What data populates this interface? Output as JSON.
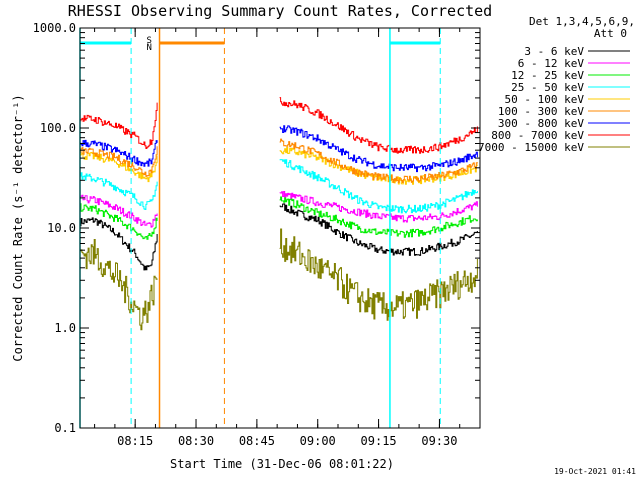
{
  "chart_data": {
    "type": "line",
    "title": "RHESSI Observing Summary Count Rates, Corrected",
    "xlabel": "Start Time (31-Dec-06 08:01:22)",
    "ylabel": "Corrected Count Rate (s⁻¹ detector⁻¹)",
    "y_scale": "log",
    "ylim": [
      0.1,
      1000
    ],
    "y_ticks": [
      0.1,
      1,
      10,
      100,
      1000
    ],
    "y_tick_labels": [
      "0.1",
      "1.0",
      "10.0",
      "100.0",
      "1000.0"
    ],
    "xlim_min": [
      481.4,
      580
    ],
    "x_ticks_min": [
      495,
      510,
      525,
      540,
      555,
      570
    ],
    "x_tick_labels": [
      "08:15",
      "08:30",
      "08:45",
      "09:00",
      "09:15",
      "09:30"
    ],
    "legend_header": [
      "Det 1,3,4,5,6,9,",
      "Att 0"
    ],
    "legend_position": "right",
    "series": [
      {
        "name": "3 - 6 keV",
        "color": "#000000",
        "seg1": {
          "x": [
            481.4,
            485,
            490,
            495,
            497.5,
            499,
            500.5
          ],
          "y": [
            11.5,
            12,
            9,
            5.5,
            3.8,
            4.3,
            9
          ]
        },
        "seg2": {
          "x": [
            530.6,
            535,
            540,
            545,
            550,
            555,
            560,
            565,
            570,
            575,
            579.5
          ],
          "y": [
            17,
            14,
            12,
            9,
            7,
            6,
            5.8,
            5.8,
            6.5,
            7.5,
            9
          ]
        }
      },
      {
        "name": "6 - 12 keV",
        "color": "#ff00ff",
        "seg1": {
          "x": [
            481.4,
            485,
            490,
            495,
            497.5,
            499,
            500.5
          ],
          "y": [
            19.5,
            19,
            16,
            12.5,
            10.5,
            11,
            15
          ]
        },
        "seg2": {
          "x": [
            530.6,
            535,
            540,
            545,
            550,
            555,
            560,
            565,
            570,
            575,
            579.5
          ],
          "y": [
            22,
            20,
            18,
            16,
            14.5,
            13,
            12.5,
            12.5,
            13,
            15,
            17
          ]
        }
      },
      {
        "name": "12 - 25 keV",
        "color": "#00ee00",
        "seg1": {
          "x": [
            481.4,
            485,
            490,
            495,
            497.5,
            499,
            500.5
          ],
          "y": [
            16,
            15.5,
            12.5,
            9.5,
            7.5,
            8.5,
            13
          ]
        },
        "seg2": {
          "x": [
            530.6,
            535,
            540,
            545,
            550,
            555,
            560,
            565,
            570,
            575,
            579.5
          ],
          "y": [
            20,
            17,
            14,
            12,
            10,
            9,
            8.8,
            9,
            10,
            11.5,
            13
          ]
        }
      },
      {
        "name": "25 - 50 keV",
        "color": "#00ffff",
        "seg1": {
          "x": [
            481.4,
            485,
            490,
            495,
            497.5,
            499,
            500.5
          ],
          "y": [
            33,
            31,
            26,
            20,
            16.5,
            18,
            30
          ]
        },
        "seg2": {
          "x": [
            530.6,
            535,
            540,
            545,
            550,
            555,
            560,
            565,
            570,
            575,
            579.5
          ],
          "y": [
            48,
            40,
            32,
            25,
            19,
            16,
            15.5,
            15.5,
            17,
            20,
            25
          ]
        }
      },
      {
        "name": "50 - 100 keV",
        "color": "#ffcc00",
        "seg1": {
          "x": [
            481.4,
            485,
            490,
            495,
            497.5,
            499,
            500.5
          ],
          "y": [
            53,
            52,
            46,
            36,
            31,
            33,
            50
          ]
        },
        "seg2": {
          "x": [
            530.6,
            535,
            540,
            545,
            550,
            555,
            560,
            565,
            570,
            575,
            579.5
          ],
          "y": [
            60,
            57,
            50,
            42,
            35,
            31,
            30,
            30,
            32,
            35,
            40
          ]
        }
      },
      {
        "name": "100 - 300 keV",
        "color": "#ff8800",
        "seg1": {
          "x": [
            481.4,
            485,
            490,
            495,
            497.5,
            499,
            500.5
          ],
          "y": [
            59,
            57,
            51,
            41,
            35,
            38,
            65
          ]
        },
        "seg2": {
          "x": [
            530.6,
            535,
            540,
            545,
            550,
            555,
            560,
            565,
            570,
            575,
            579.5
          ],
          "y": [
            72,
            66,
            55,
            44,
            36,
            32,
            31,
            31,
            33,
            37,
            43
          ]
        }
      },
      {
        "name": "300 - 800 keV",
        "color": "#0000ff",
        "seg1": {
          "x": [
            481.4,
            485,
            490,
            495,
            497.5,
            499,
            500.5
          ],
          "y": [
            71,
            69,
            60,
            48,
            43,
            46,
            80
          ]
        },
        "seg2": {
          "x": [
            530.6,
            535,
            540,
            545,
            550,
            555,
            560,
            565,
            570,
            575,
            579.5
          ],
          "y": [
            100,
            92,
            78,
            60,
            48,
            42,
            40,
            40,
            42,
            47,
            56
          ]
        }
      },
      {
        "name": "800 - 7000 keV",
        "color": "#ff0000",
        "seg1": {
          "x": [
            481.4,
            485,
            490,
            495,
            497.5,
            499,
            500.5
          ],
          "y": [
            125,
            122,
            105,
            82,
            66,
            75,
            180
          ]
        },
        "seg2": {
          "x": [
            530.6,
            535,
            540,
            545,
            550,
            555,
            560,
            565,
            570,
            575,
            579.5
          ],
          "y": [
            185,
            170,
            140,
            105,
            78,
            64,
            60,
            60,
            65,
            78,
            98
          ]
        }
      },
      {
        "name": "7000 - 15000 keV",
        "color": "#808000",
        "seg1": {
          "x": [
            481.4,
            485,
            488,
            491,
            493,
            495,
            496.5,
            498,
            499.5,
            500.5
          ],
          "y": [
            5.5,
            5.5,
            4,
            3,
            2.2,
            1.6,
            1.3,
            1.6,
            2.4,
            3.5
          ]
        },
        "seg2": {
          "x": [
            530.6,
            535,
            540,
            545,
            548,
            552,
            556,
            560,
            565,
            570,
            575,
            579.5
          ],
          "y": [
            7,
            5.5,
            4,
            3,
            2.3,
            1.8,
            1.6,
            1.6,
            1.8,
            2.2,
            2.8,
            3.5
          ]
        }
      }
    ],
    "markers": {
      "saa_label": "S",
      "night_label": "N",
      "vertical_lines": [
        {
          "x": 481.4,
          "color": "#00ffff",
          "style": "solid"
        },
        {
          "x": 494,
          "color": "#00ffff",
          "style": "dashed"
        },
        {
          "x": 501,
          "color": "#ff8800",
          "style": "solid"
        },
        {
          "x": 517,
          "color": "#ff8800",
          "style": "dashed"
        },
        {
          "x": 557.8,
          "color": "#00ffff",
          "style": "solid"
        },
        {
          "x": 570.2,
          "color": "#00ffff",
          "style": "dashed"
        }
      ],
      "bars": [
        {
          "x0": 481.4,
          "x1": 494,
          "color": "#00ffff"
        },
        {
          "x0": 501,
          "x1": 517,
          "color": "#ff8800"
        },
        {
          "x0": 557.8,
          "x1": 570.2,
          "color": "#00ffff"
        }
      ]
    }
  },
  "footer_timestamp": "19-Oct-2021 01:41"
}
